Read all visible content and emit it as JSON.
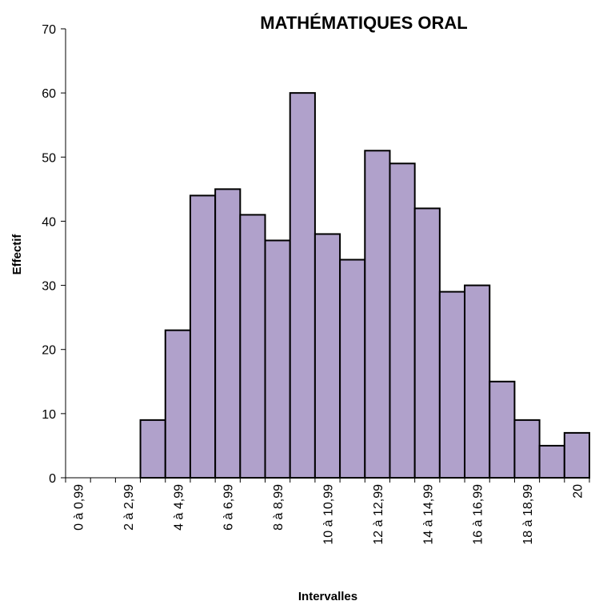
{
  "chart_data": {
    "type": "bar",
    "title": "MATHÉMATIQUES ORAL",
    "x_label": "Intervalles",
    "y_label": "Effectif",
    "categories": [
      "0 à 0,99",
      null,
      "2 à 2,99",
      null,
      "4 à 4,99",
      null,
      "6 à 6,99",
      null,
      "8 à 8,99",
      null,
      "10 à 10,99",
      null,
      "12 à 12,99",
      null,
      "14 à 14,99",
      null,
      "16 à 16,99",
      null,
      "18 à 18,99",
      null,
      "20"
    ],
    "values": [
      0,
      0,
      0,
      9,
      23,
      44,
      45,
      41,
      37,
      60,
      38,
      34,
      51,
      49,
      42,
      29,
      30,
      15,
      9,
      5,
      7
    ],
    "color": "#b0a1cb",
    "ylim": [
      0,
      70
    ],
    "yticks": [
      0,
      10,
      20,
      30,
      40,
      50,
      60,
      70
    ],
    "grid": false
  }
}
